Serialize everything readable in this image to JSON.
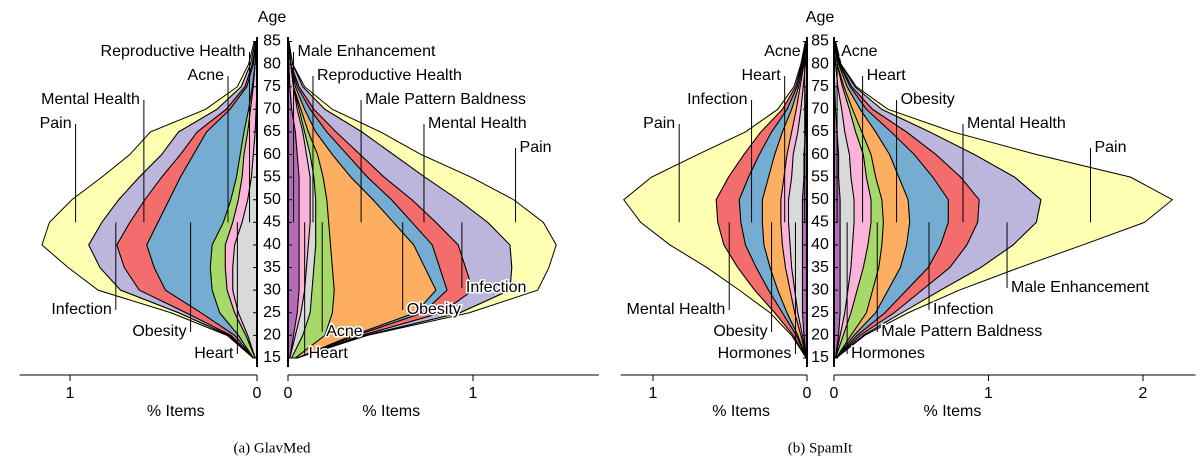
{
  "chart_data": [
    {
      "type": "pyramid",
      "caption": "(a) GlavMed",
      "ylabel": "Age",
      "ages": [
        15,
        20,
        25,
        30,
        35,
        40,
        45,
        50,
        55,
        60,
        65,
        70,
        75,
        80,
        85
      ],
      "ylim": [
        13,
        86
      ],
      "yticks": [
        15,
        20,
        25,
        30,
        35,
        40,
        45,
        50,
        55,
        60,
        65,
        70,
        75,
        80,
        85
      ],
      "left": {
        "xlabel": "% Items",
        "xlim": [
          0,
          1.27
        ],
        "xticks": [
          0,
          1
        ],
        "series": [
          {
            "name": "Reproductive Health",
            "color": "#d9d9d9",
            "values": [
              0.01,
              0.05,
              0.1,
              0.13,
              0.13,
              0.12,
              0.08,
              0.05,
              0.03,
              0.02,
              0.01,
              0.005,
              0,
              0,
              0
            ]
          },
          {
            "name": "Heart",
            "color": "#fbb4d9",
            "values": [
              0,
              0.01,
              0.02,
              0.03,
              0.04,
              0.05,
              0.05,
              0.05,
              0.05,
              0.05,
              0.04,
              0.03,
              0.02,
              0.01,
              0.005
            ]
          },
          {
            "name": "Acne",
            "color": "#a6d96a",
            "values": [
              0.01,
              0.04,
              0.08,
              0.08,
              0.08,
              0.07,
              0.05,
              0.04,
              0.03,
              0.02,
              0.02,
              0.01,
              0.005,
              0,
              0
            ]
          },
          {
            "name": "Obesity",
            "color": "#74add1",
            "values": [
              0,
              0.02,
              0.1,
              0.25,
              0.3,
              0.35,
              0.35,
              0.33,
              0.3,
              0.25,
              0.2,
              0.1,
              0.03,
              0.01,
              0
            ]
          },
          {
            "name": "Mental Health",
            "color": "#f46d6d",
            "values": [
              0,
              0.02,
              0.08,
              0.14,
              0.16,
              0.16,
              0.15,
              0.13,
              0.1,
              0.07,
              0.05,
              0.02,
              0.01,
              0.005,
              0
            ]
          },
          {
            "name": "Infection",
            "color": "#bcb6dc",
            "values": [
              0,
              0.01,
              0.04,
              0.1,
              0.13,
              0.15,
              0.15,
              0.14,
              0.12,
              0.1,
              0.1,
              0.05,
              0.02,
              0.01,
              0.005
            ]
          },
          {
            "name": "Pain",
            "color": "#ffffb3",
            "values": [
              0,
              0.01,
              0.04,
              0.12,
              0.17,
              0.25,
              0.28,
              0.25,
              0.2,
              0.17,
              0.15,
              0.06,
              0.02,
              0.01,
              0.005
            ]
          }
        ]
      },
      "right": {
        "xlabel": "% Items",
        "xlim": [
          0,
          1.68
        ],
        "xticks": [
          0,
          1
        ],
        "series": [
          {
            "name": "Male Enhancement",
            "color": "#b36db8",
            "values": [
              0.01,
              0.03,
              0.05,
              0.06,
              0.06,
              0.06,
              0.06,
              0.06,
              0.06,
              0.05,
              0.04,
              0.02,
              0.01,
              0.005,
              0.005
            ]
          },
          {
            "name": "Heart",
            "color": "#fbb4d9",
            "values": [
              0,
              0.01,
              0.02,
              0.03,
              0.04,
              0.05,
              0.06,
              0.06,
              0.06,
              0.05,
              0.04,
              0.03,
              0.02,
              0.01,
              0
            ]
          },
          {
            "name": "Reproductive Health",
            "color": "#d9d9d9",
            "values": [
              0.01,
              0.04,
              0.05,
              0.04,
              0.04,
              0.04,
              0.03,
              0.03,
              0.02,
              0.02,
              0.01,
              0.01,
              0,
              0,
              0
            ]
          },
          {
            "name": "Acne",
            "color": "#a6d96a",
            "values": [
              0.02,
              0.12,
              0.12,
              0.12,
              0.1,
              0.08,
              0.07,
              0.06,
              0.05,
              0.04,
              0.02,
              0.01,
              0,
              0,
              0
            ]
          },
          {
            "name": "Male Pattern Baldness",
            "color": "#fdae61",
            "values": [
              0.01,
              0.15,
              0.45,
              0.55,
              0.5,
              0.45,
              0.35,
              0.25,
              0.15,
              0.08,
              0.04,
              0.02,
              0.01,
              0,
              0
            ]
          },
          {
            "name": "Obesity",
            "color": "#74add1",
            "values": [
              0,
              0.02,
              0.04,
              0.06,
              0.08,
              0.1,
              0.1,
              0.1,
              0.09,
              0.08,
              0.06,
              0.03,
              0.01,
              0,
              0
            ]
          },
          {
            "name": "Mental Health",
            "color": "#f46d6d",
            "values": [
              0,
              0.03,
              0.1,
              0.14,
              0.14,
              0.14,
              0.13,
              0.11,
              0.09,
              0.07,
              0.05,
              0.02,
              0.01,
              0,
              0
            ]
          },
          {
            "name": "Infection",
            "color": "#bcb6dc",
            "values": [
              0,
              0.02,
              0.1,
              0.2,
              0.25,
              0.28,
              0.28,
              0.25,
              0.22,
              0.18,
              0.14,
              0.06,
              0.02,
              0.01,
              0
            ]
          },
          {
            "name": "Pain",
            "color": "#ffffb3",
            "values": [
              0,
              0.01,
              0.05,
              0.15,
              0.2,
              0.25,
              0.3,
              0.3,
              0.25,
              0.15,
              0.1,
              0.04,
              0.01,
              0,
              0
            ]
          }
        ]
      }
    },
    {
      "type": "pyramid",
      "caption": "(b) SpamIt",
      "ylabel": "Age",
      "ages": [
        15,
        20,
        25,
        30,
        35,
        40,
        45,
        50,
        55,
        60,
        65,
        70,
        75,
        80,
        85
      ],
      "ylim": [
        13,
        86
      ],
      "yticks": [
        15,
        20,
        25,
        30,
        35,
        40,
        45,
        50,
        55,
        60,
        65,
        70,
        75,
        80,
        85
      ],
      "left": {
        "xlabel": "% Items",
        "xlim": [
          0,
          1.21
        ],
        "xticks": [
          0,
          1
        ],
        "series": [
          {
            "name": "Acne",
            "color": "#b36db8",
            "values": [
              0.005,
              0.02,
              0.03,
              0.03,
              0.03,
              0.03,
              0.03,
              0.03,
              0.02,
              0.02,
              0.01,
              0.01,
              0.005,
              0,
              0
            ]
          },
          {
            "name": "Hormones",
            "color": "#d9d9d9",
            "values": [
              0,
              0.01,
              0.03,
              0.05,
              0.07,
              0.08,
              0.09,
              0.09,
              0.08,
              0.07,
              0.05,
              0.03,
              0.02,
              0.01,
              0.005
            ]
          },
          {
            "name": "Heart",
            "color": "#fbb4d9",
            "values": [
              0,
              0.01,
              0.02,
              0.03,
              0.04,
              0.05,
              0.05,
              0.05,
              0.05,
              0.04,
              0.04,
              0.03,
              0.02,
              0.01,
              0.005
            ]
          },
          {
            "name": "Obesity",
            "color": "#fdae61",
            "values": [
              0,
              0.02,
              0.05,
              0.08,
              0.1,
              0.12,
              0.12,
              0.12,
              0.1,
              0.08,
              0.06,
              0.03,
              0.01,
              0.005,
              0
            ]
          },
          {
            "name": "Infection",
            "color": "#74add1",
            "values": [
              0,
              0.01,
              0.03,
              0.06,
              0.09,
              0.12,
              0.14,
              0.15,
              0.13,
              0.1,
              0.07,
              0.03,
              0.01,
              0.005,
              0
            ]
          },
          {
            "name": "Mental Health",
            "color": "#f46d6d",
            "values": [
              0,
              0.02,
              0.05,
              0.09,
              0.12,
              0.14,
              0.15,
              0.15,
              0.13,
              0.1,
              0.07,
              0.03,
              0.01,
              0.005,
              0
            ]
          },
          {
            "name": "Pain",
            "color": "#ffffb3",
            "values": [
              0,
              0.01,
              0.03,
              0.1,
              0.2,
              0.35,
              0.5,
              0.6,
              0.5,
              0.3,
              0.1,
              0.03,
              0.01,
              0.005,
              0
            ]
          }
        ]
      },
      "right": {
        "xlabel": "% Items",
        "xlim": [
          0,
          2.34
        ],
        "xticks": [
          0,
          1,
          2
        ],
        "series": [
          {
            "name": "Acne",
            "color": "#b36db8",
            "values": [
              0.01,
              0.03,
              0.04,
              0.04,
              0.04,
              0.04,
              0.04,
              0.04,
              0.03,
              0.03,
              0.02,
              0.01,
              0.005,
              0,
              0
            ]
          },
          {
            "name": "Hormones",
            "color": "#d9d9d9",
            "values": [
              0,
              0.01,
              0.03,
              0.05,
              0.07,
              0.08,
              0.09,
              0.09,
              0.08,
              0.07,
              0.05,
              0.04,
              0.02,
              0.01,
              0.005
            ]
          },
          {
            "name": "Heart",
            "color": "#fbb4d9",
            "values": [
              0,
              0.02,
              0.04,
              0.06,
              0.08,
              0.1,
              0.11,
              0.11,
              0.1,
              0.09,
              0.07,
              0.05,
              0.03,
              0.01,
              0.005
            ]
          },
          {
            "name": "Male Pattern Baldness",
            "color": "#a6d96a",
            "values": [
              0.005,
              0.05,
              0.1,
              0.1,
              0.1,
              0.09,
              0.08,
              0.07,
              0.06,
              0.05,
              0.04,
              0.02,
              0.01,
              0,
              0
            ]
          },
          {
            "name": "Obesity",
            "color": "#fdae61",
            "values": [
              0,
              0.02,
              0.06,
              0.1,
              0.14,
              0.16,
              0.17,
              0.17,
              0.15,
              0.12,
              0.09,
              0.05,
              0.02,
              0.01,
              0
            ]
          },
          {
            "name": "Infection",
            "color": "#74add1",
            "values": [
              0,
              0.02,
              0.06,
              0.12,
              0.18,
              0.22,
              0.25,
              0.26,
              0.22,
              0.16,
              0.1,
              0.04,
              0.02,
              0.005,
              0
            ]
          },
          {
            "name": "Mental Health",
            "color": "#f46d6d",
            "values": [
              0,
              0.02,
              0.06,
              0.1,
              0.14,
              0.17,
              0.19,
              0.2,
              0.18,
              0.14,
              0.1,
              0.04,
              0.01,
              0.005,
              0
            ]
          },
          {
            "name": "Male Enhancement",
            "color": "#bcb6dc",
            "values": [
              0,
              0.02,
              0.05,
              0.12,
              0.2,
              0.3,
              0.38,
              0.4,
              0.35,
              0.25,
              0.15,
              0.06,
              0.02,
              0.005,
              0
            ]
          },
          {
            "name": "Pain",
            "color": "#ffffb3",
            "values": [
              0,
              0.01,
              0.04,
              0.12,
              0.25,
              0.45,
              0.7,
              0.85,
              0.75,
              0.4,
              0.15,
              0.04,
              0.01,
              0,
              0
            ]
          }
        ]
      }
    }
  ]
}
